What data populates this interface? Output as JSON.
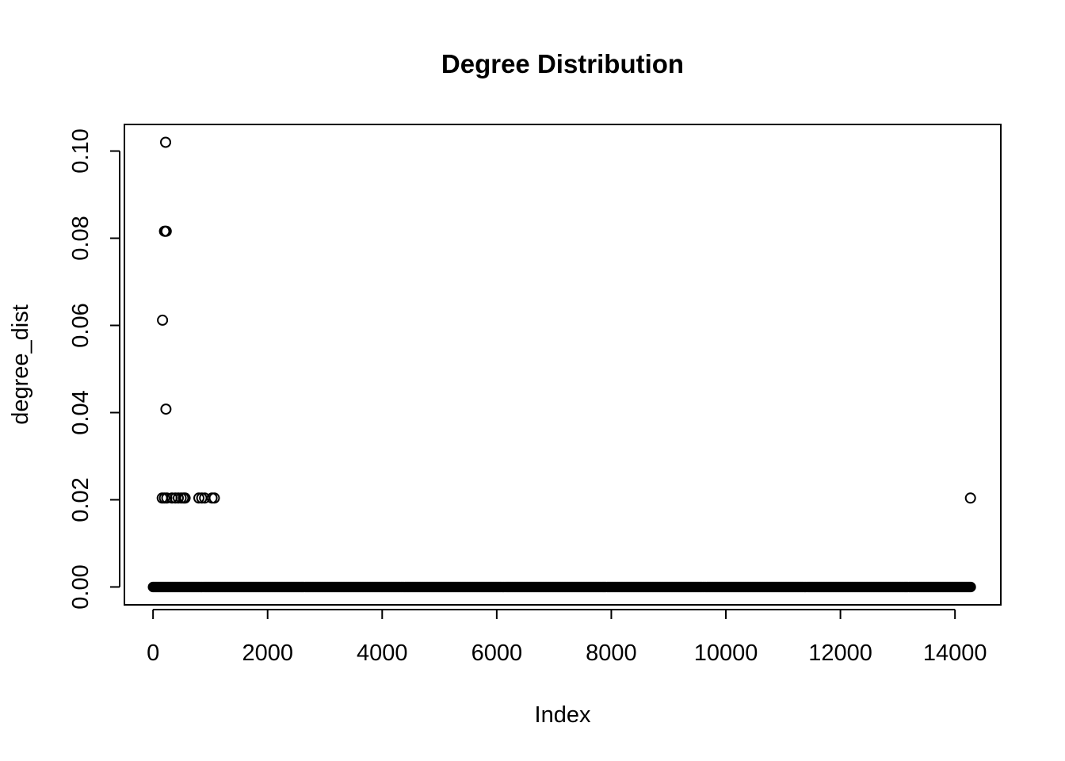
{
  "chart_data": {
    "type": "scatter",
    "title": "Degree Distribution",
    "xlabel": "Index",
    "ylabel": "degree_dist",
    "xlim": [
      -500,
      14800
    ],
    "ylim": [
      -0.0041,
      0.1061
    ],
    "x_ticks": [
      0,
      2000,
      4000,
      6000,
      8000,
      10000,
      12000,
      14000
    ],
    "x_tick_labels": [
      "0",
      "2000",
      "4000",
      "6000",
      "8000",
      "10000",
      "12000",
      "14000"
    ],
    "y_ticks": [
      0.0,
      0.02,
      0.04,
      0.06,
      0.08,
      0.1
    ],
    "y_tick_labels": [
      "0.00",
      "0.02",
      "0.04",
      "0.06",
      "0.08",
      "0.10"
    ],
    "grid": false,
    "marker": "open-circle",
    "baseline": {
      "x_start": 0,
      "x_end": 14280,
      "y": 0.0
    },
    "points": [
      {
        "x": 220,
        "y": 0.102
      },
      {
        "x": 200,
        "y": 0.0816
      },
      {
        "x": 215,
        "y": 0.0816
      },
      {
        "x": 230,
        "y": 0.0816
      },
      {
        "x": 165,
        "y": 0.0612
      },
      {
        "x": 225,
        "y": 0.0408
      },
      {
        "x": 160,
        "y": 0.0204
      },
      {
        "x": 200,
        "y": 0.0204
      },
      {
        "x": 240,
        "y": 0.0204
      },
      {
        "x": 330,
        "y": 0.0204
      },
      {
        "x": 390,
        "y": 0.0204
      },
      {
        "x": 440,
        "y": 0.0204
      },
      {
        "x": 490,
        "y": 0.0204
      },
      {
        "x": 530,
        "y": 0.0204
      },
      {
        "x": 560,
        "y": 0.0204
      },
      {
        "x": 800,
        "y": 0.0204
      },
      {
        "x": 850,
        "y": 0.0204
      },
      {
        "x": 900,
        "y": 0.0204
      },
      {
        "x": 1030,
        "y": 0.0204
      },
      {
        "x": 1070,
        "y": 0.0204
      },
      {
        "x": 14270,
        "y": 0.0204
      }
    ]
  }
}
